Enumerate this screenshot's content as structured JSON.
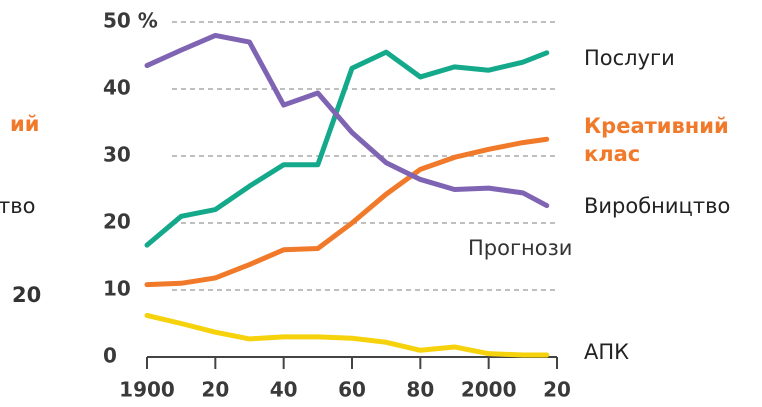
{
  "chart_data": {
    "type": "line",
    "x": [
      1900,
      1910,
      1920,
      1930,
      1940,
      1950,
      1960,
      1970,
      1980,
      1990,
      2000,
      2010,
      2017
    ],
    "series": [
      {
        "name": "Послуги",
        "color": "#14a98a",
        "values": [
          16.7,
          21,
          22,
          25.5,
          28.7,
          28.7,
          43.1,
          45.5,
          41.8,
          43.3,
          42.8,
          44,
          45.4
        ]
      },
      {
        "name": "Креативний клас",
        "color": "#f07a2a",
        "values": [
          10.8,
          11,
          11.8,
          13.8,
          16,
          16.2,
          20,
          24.3,
          28,
          29.8,
          31,
          32,
          32.5
        ]
      },
      {
        "name": "Виробництво",
        "color": "#8064b4",
        "values": [
          43.5,
          45.8,
          48,
          47,
          37.6,
          39.4,
          33.5,
          29,
          26.5,
          25,
          25.2,
          24.5,
          22.6
        ]
      },
      {
        "name": "АПК",
        "color": "#f5d20c",
        "values": [
          6.2,
          5,
          3.7,
          2.7,
          3,
          3,
          2.8,
          2.2,
          1,
          1.5,
          0.5,
          0.3,
          0.3
        ]
      }
    ],
    "annotation": "Прогнози",
    "cropped_text": [
      "ий",
      "тво",
      "20"
    ],
    "xlim": [
      1900,
      2020
    ],
    "xticks": [
      1900,
      {
        "value": 1920,
        "label": "20"
      },
      {
        "value": 1940,
        "label": "40"
      },
      {
        "value": 1960,
        "label": "60"
      },
      {
        "value": 1980,
        "label": "80"
      },
      2000,
      {
        "value": 2020,
        "label": "20"
      }
    ],
    "ylim": [
      0,
      50
    ],
    "yticks": [
      0,
      10,
      20,
      30,
      40,
      {
        "value": 50,
        "label": "50 %"
      }
    ],
    "grid": true
  }
}
